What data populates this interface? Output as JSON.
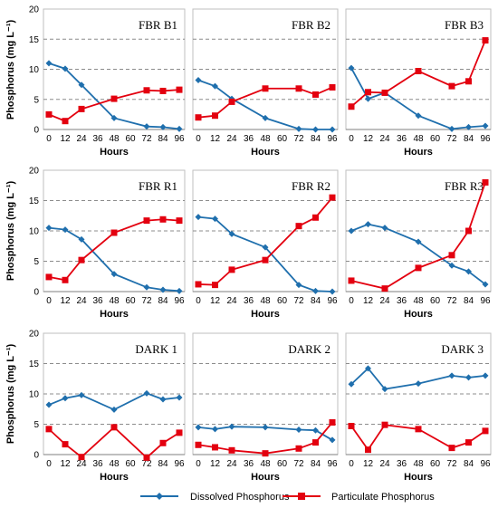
{
  "x_ticks": [
    "0",
    "12",
    "24",
    "36",
    "48",
    "60",
    "72",
    "84",
    "96"
  ],
  "y_ticks": [
    "0",
    "5",
    "10",
    "15",
    "20"
  ],
  "xlabel": "Hours",
  "ylabel": "Phosphorus (mg L⁻¹)",
  "colors": {
    "dissolved": "#1f6fad",
    "particulate": "#e3000f",
    "grid": "#8c8c8c"
  },
  "legend": {
    "dissolved": "Dissolved Phosphorus",
    "particulate": "Particulate Phosphorus"
  },
  "chart_data": [
    {
      "type": "line",
      "title": "FBR B1",
      "x": [
        0,
        12,
        24,
        48,
        72,
        84,
        96
      ],
      "ylim": [
        0,
        20
      ],
      "series": [
        {
          "name": "Dissolved Phosphorus",
          "values": [
            11,
            10.1,
            7.4,
            1.9,
            0.5,
            0.4,
            0.1
          ]
        },
        {
          "name": "Particulate Phosphorus",
          "values": [
            2.5,
            1.4,
            3.4,
            5.1,
            6.5,
            6.4,
            6.6
          ]
        }
      ]
    },
    {
      "type": "line",
      "title": "FBR B2",
      "x": [
        0,
        12,
        24,
        48,
        72,
        84,
        96
      ],
      "ylim": [
        0,
        20
      ],
      "series": [
        {
          "name": "Dissolved Phosphorus",
          "values": [
            8.2,
            7.2,
            5.1,
            1.9,
            0.1,
            0.0,
            0.0
          ]
        },
        {
          "name": "Particulate Phosphorus",
          "values": [
            2.0,
            2.3,
            4.6,
            6.8,
            6.8,
            5.8,
            7.0
          ]
        }
      ]
    },
    {
      "type": "line",
      "title": "FBR B3",
      "x": [
        0,
        12,
        24,
        48,
        72,
        84,
        96
      ],
      "ylim": [
        0,
        20
      ],
      "series": [
        {
          "name": "Dissolved Phosphorus",
          "values": [
            10.2,
            5.1,
            6.1,
            2.3,
            0.1,
            0.4,
            0.6
          ]
        },
        {
          "name": "Particulate Phosphorus",
          "values": [
            3.8,
            6.2,
            6.1,
            9.7,
            7.2,
            8.0,
            14.8
          ]
        }
      ]
    },
    {
      "type": "line",
      "title": "FBR R1",
      "x": [
        0,
        12,
        24,
        48,
        72,
        84,
        96
      ],
      "ylim": [
        0,
        20
      ],
      "series": [
        {
          "name": "Dissolved Phosphorus",
          "values": [
            10.5,
            10.2,
            8.6,
            2.9,
            0.7,
            0.3,
            0.1
          ]
        },
        {
          "name": "Particulate Phosphorus",
          "values": [
            2.4,
            1.9,
            5.2,
            9.7,
            11.7,
            11.9,
            11.7
          ]
        }
      ]
    },
    {
      "type": "line",
      "title": "FBR R2",
      "x": [
        0,
        12,
        24,
        48,
        72,
        84,
        96
      ],
      "ylim": [
        0,
        20
      ],
      "series": [
        {
          "name": "Dissolved Phosphorus",
          "values": [
            12.3,
            12.0,
            9.5,
            7.3,
            1.1,
            0.1,
            0.0
          ]
        },
        {
          "name": "Particulate Phosphorus",
          "values": [
            1.2,
            1.1,
            3.6,
            5.2,
            10.8,
            12.2,
            15.5
          ]
        }
      ]
    },
    {
      "type": "line",
      "title": "FBR R3",
      "x": [
        0,
        12,
        24,
        48,
        72,
        84,
        96
      ],
      "ylim": [
        0,
        20
      ],
      "series": [
        {
          "name": "Dissolved Phosphorus",
          "values": [
            10.0,
            11.1,
            10.5,
            8.2,
            4.3,
            3.3,
            1.2
          ]
        },
        {
          "name": "Particulate Phosphorus",
          "values": [
            1.8,
            null,
            0.5,
            3.9,
            6.0,
            10.0,
            18.0
          ]
        }
      ]
    },
    {
      "type": "line",
      "title": "DARK 1",
      "x": [
        0,
        12,
        24,
        48,
        72,
        84,
        96
      ],
      "ylim": [
        0,
        20
      ],
      "series": [
        {
          "name": "Dissolved Phosphorus",
          "values": [
            8.2,
            9.3,
            9.8,
            7.4,
            10.1,
            9.1,
            9.4
          ]
        },
        {
          "name": "Particulate Phosphorus",
          "values": [
            4.2,
            1.7,
            -0.4,
            4.5,
            -0.5,
            1.9,
            3.6
          ]
        }
      ]
    },
    {
      "type": "line",
      "title": "DARK 2",
      "x": [
        0,
        12,
        24,
        48,
        72,
        84,
        96
      ],
      "ylim": [
        0,
        20
      ],
      "series": [
        {
          "name": "Dissolved Phosphorus",
          "values": [
            4.5,
            4.2,
            4.6,
            4.5,
            4.1,
            4.0,
            2.4
          ]
        },
        {
          "name": "Particulate Phosphorus",
          "values": [
            1.6,
            1.2,
            0.7,
            0.2,
            1.0,
            2.0,
            5.3
          ]
        }
      ]
    },
    {
      "type": "line",
      "title": "DARK 3",
      "x": [
        0,
        12,
        24,
        48,
        72,
        84,
        96
      ],
      "ylim": [
        0,
        20
      ],
      "series": [
        {
          "name": "Dissolved Phosphorus",
          "values": [
            11.6,
            14.2,
            10.8,
            11.7,
            13.0,
            12.7,
            13.0
          ]
        },
        {
          "name": "Particulate Phosphorus",
          "values": [
            4.7,
            0.8,
            4.9,
            4.2,
            1.1,
            2.0,
            3.9
          ]
        }
      ]
    }
  ]
}
